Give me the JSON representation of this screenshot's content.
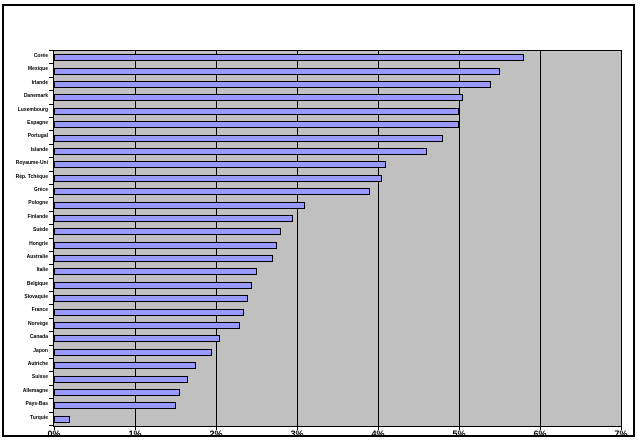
{
  "chart_data": {
    "type": "bar",
    "orientation": "horizontal",
    "title": "",
    "xlabel": "",
    "ylabel": "",
    "xlim": [
      0,
      7
    ],
    "x_tick_labels": [
      "0%",
      "1%",
      "2%",
      "3%",
      "4%",
      "5%",
      "6%",
      "7%"
    ],
    "grid": true,
    "legend": false,
    "categories": [
      "Corée",
      "Mexique",
      "Irlande",
      "Danemark",
      "Luxembourg",
      "Espagne",
      "Portugal",
      "Islande",
      "Royaume-Uni",
      "Rép. Tchèque",
      "Grèce",
      "Pologne",
      "Finlande",
      "Suède",
      "Hongrie",
      "Australie",
      "Italie",
      "Belgique",
      "Slovaquie",
      "France",
      "Norvège",
      "Canada",
      "Japon",
      "Autriche",
      "Suisse",
      "Allemagne",
      "Pays-Bas",
      "Turquie"
    ],
    "values": [
      5.8,
      5.5,
      5.4,
      5.05,
      5.0,
      5.0,
      4.8,
      4.6,
      4.1,
      4.05,
      3.9,
      3.1,
      2.95,
      2.8,
      2.75,
      2.7,
      2.5,
      2.45,
      2.4,
      2.35,
      2.3,
      2.05,
      1.95,
      1.75,
      1.65,
      1.55,
      1.5,
      0.2
    ],
    "value_unit": "%",
    "colors": {
      "bar_fill": "#9999ff",
      "bar_border": "#000000",
      "plot_background": "#c0c0c0",
      "gridline": "#000000",
      "chart_background": "#ffffff",
      "frame_border": "#000000"
    }
  }
}
